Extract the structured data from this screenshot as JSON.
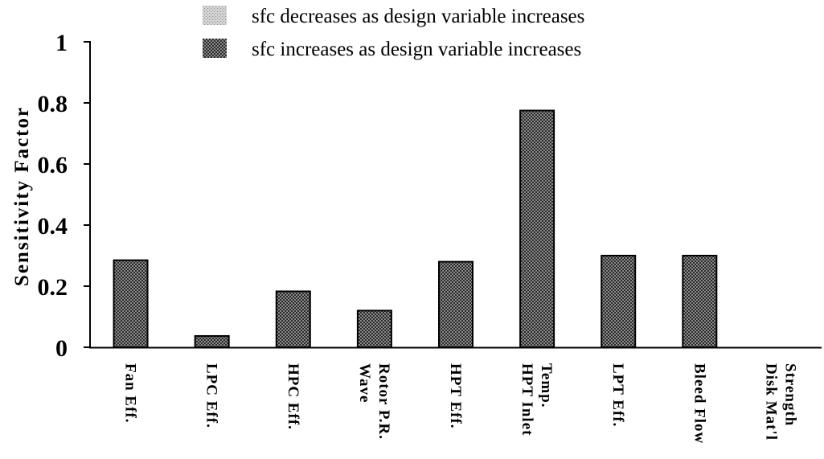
{
  "chart_data": {
    "type": "bar",
    "ylabel": "Sensitivity Factor",
    "ylim": [
      0,
      1
    ],
    "yticks": [
      "0",
      "0.2",
      "0.4",
      "0.6",
      "0.8",
      "1"
    ],
    "legend": {
      "placement": "top",
      "entries": [
        {
          "label": "sfc decreases as design variable increases",
          "pattern": "light-dots"
        },
        {
          "label": "sfc increases as design variable increases",
          "pattern": "dark-crosshatch"
        }
      ]
    },
    "categories": [
      [
        "Fan Eff."
      ],
      [
        "LPC Eff."
      ],
      [
        "HPC Eff."
      ],
      [
        "Wave",
        "Rotor P.R."
      ],
      [
        "HPT Eff."
      ],
      [
        "HPT Inlet",
        "Temp."
      ],
      [
        "LPT Eff."
      ],
      [
        "Bleed Flow"
      ],
      [
        "Disk Mat'l",
        "Strength"
      ]
    ],
    "values": [
      0.285,
      0.037,
      0.183,
      0.12,
      0.28,
      0.775,
      0.3,
      0.3,
      0
    ],
    "bar_series": [
      1,
      1,
      1,
      1,
      1,
      1,
      1,
      1,
      1
    ]
  }
}
